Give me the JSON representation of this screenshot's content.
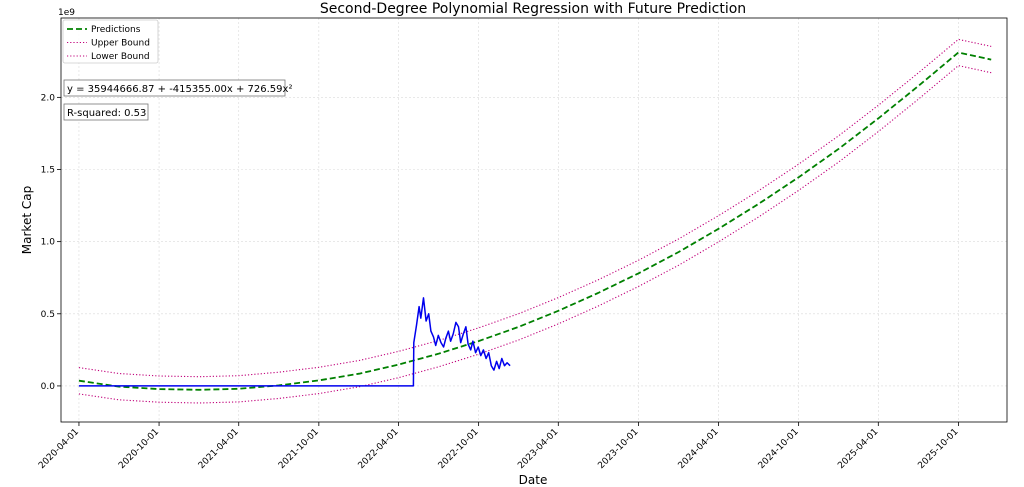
{
  "chart_data": {
    "type": "line",
    "title": "Second-Degree Polynomial Regression with Future Prediction",
    "xlabel": "Date",
    "ylabel": "Market Cap",
    "y_exponent_label": "1e9",
    "ylim": [
      -0.25,
      2.55
    ],
    "xlim": [
      "2020-02-20",
      "2026-01-20"
    ],
    "y_ticks": [
      0.0,
      0.5,
      1.0,
      1.5,
      2.0
    ],
    "y_tick_labels": [
      "0.0",
      "0.5",
      "1.0",
      "1.5",
      "2.0"
    ],
    "x_ticks": [
      "2020-04-01",
      "2020-10-01",
      "2021-04-01",
      "2021-10-01",
      "2022-04-01",
      "2022-10-01",
      "2023-04-01",
      "2023-10-01",
      "2024-04-01",
      "2024-10-01",
      "2025-04-01",
      "2025-10-01"
    ],
    "grid": true,
    "legend_position": "top-left",
    "annotations": [
      "y = 35944666.87 + -415355.00x + 726.59x²",
      "R-squared: 0.53"
    ],
    "series": [
      {
        "name": "Predictions",
        "style": "dashed",
        "color": "#008000",
        "x": [
          "2020-04-01",
          "2020-07-01",
          "2020-10-01",
          "2021-01-01",
          "2021-04-01",
          "2021-07-01",
          "2021-10-01",
          "2022-01-01",
          "2022-04-01",
          "2022-07-01",
          "2022-10-01",
          "2023-01-01",
          "2023-04-01",
          "2023-07-01",
          "2023-10-01",
          "2024-01-01",
          "2024-04-01",
          "2024-07-01",
          "2024-10-01",
          "2025-01-01",
          "2025-04-01",
          "2025-07-01",
          "2025-10-01",
          "2025-12-15"
        ],
        "values": [
          0.036,
          -0.005,
          -0.022,
          -0.027,
          -0.02,
          0.004,
          0.038,
          0.085,
          0.148,
          0.223,
          0.311,
          0.41,
          0.521,
          0.644,
          0.78,
          0.928,
          1.089,
          1.261,
          1.446,
          1.644,
          1.854,
          2.077,
          2.311,
          2.262
        ]
      },
      {
        "name": "Upper Bound",
        "style": "dotted",
        "color": "#c0007a",
        "x": [
          "2020-04-01",
          "2020-07-01",
          "2020-10-01",
          "2021-01-01",
          "2021-04-01",
          "2021-07-01",
          "2021-10-01",
          "2022-01-01",
          "2022-04-01",
          "2022-07-01",
          "2022-10-01",
          "2023-01-01",
          "2023-04-01",
          "2023-07-01",
          "2023-10-01",
          "2024-01-01",
          "2024-04-01",
          "2024-07-01",
          "2024-10-01",
          "2025-01-01",
          "2025-04-01",
          "2025-07-01",
          "2025-10-01",
          "2025-12-15"
        ],
        "values": [
          0.127,
          0.086,
          0.069,
          0.064,
          0.071,
          0.095,
          0.129,
          0.176,
          0.239,
          0.314,
          0.402,
          0.501,
          0.612,
          0.735,
          0.871,
          1.019,
          1.18,
          1.352,
          1.537,
          1.735,
          1.945,
          2.168,
          2.402,
          2.353
        ]
      },
      {
        "name": "Lower Bound",
        "style": "dotted",
        "color": "#c0007a",
        "x": [
          "2020-04-01",
          "2020-07-01",
          "2020-10-01",
          "2021-01-01",
          "2021-04-01",
          "2021-07-01",
          "2021-10-01",
          "2022-01-01",
          "2022-04-01",
          "2022-07-01",
          "2022-10-01",
          "2023-01-01",
          "2023-04-01",
          "2023-07-01",
          "2023-10-01",
          "2024-01-01",
          "2024-04-01",
          "2024-07-01",
          "2024-10-01",
          "2025-01-01",
          "2025-04-01",
          "2025-07-01",
          "2025-10-01",
          "2025-12-15"
        ],
        "values": [
          -0.055,
          -0.096,
          -0.113,
          -0.118,
          -0.111,
          -0.087,
          -0.053,
          -0.006,
          0.057,
          0.132,
          0.22,
          0.319,
          0.43,
          0.553,
          0.689,
          0.837,
          0.998,
          1.17,
          1.355,
          1.553,
          1.763,
          1.986,
          2.22,
          2.171
        ]
      },
      {
        "name": "",
        "style": "solid",
        "color": "#0000ee",
        "x": [
          "2020-04-01",
          "2021-04-01",
          "2022-01-01",
          "2022-05-05",
          "2022-05-06",
          "2022-05-12",
          "2022-05-18",
          "2022-05-22",
          "2022-05-28",
          "2022-06-03",
          "2022-06-09",
          "2022-06-14",
          "2022-06-20",
          "2022-06-25",
          "2022-07-01",
          "2022-07-07",
          "2022-07-13",
          "2022-07-18",
          "2022-07-24",
          "2022-07-29",
          "2022-08-04",
          "2022-08-10",
          "2022-08-16",
          "2022-08-21",
          "2022-08-27",
          "2022-09-02",
          "2022-09-07",
          "2022-09-13",
          "2022-09-18",
          "2022-09-24",
          "2022-09-30",
          "2022-10-06",
          "2022-10-12",
          "2022-10-18",
          "2022-10-24",
          "2022-10-30",
          "2022-11-05",
          "2022-11-11",
          "2022-11-17",
          "2022-11-23",
          "2022-11-29",
          "2022-12-05",
          "2022-12-12"
        ],
        "values": [
          0.0,
          0.0,
          0.0,
          0.0,
          0.3,
          0.42,
          0.55,
          0.47,
          0.61,
          0.45,
          0.5,
          0.38,
          0.34,
          0.28,
          0.35,
          0.3,
          0.27,
          0.33,
          0.38,
          0.31,
          0.36,
          0.44,
          0.41,
          0.3,
          0.36,
          0.41,
          0.29,
          0.25,
          0.31,
          0.23,
          0.27,
          0.21,
          0.25,
          0.19,
          0.23,
          0.14,
          0.11,
          0.17,
          0.12,
          0.19,
          0.14,
          0.16,
          0.14
        ]
      }
    ]
  }
}
